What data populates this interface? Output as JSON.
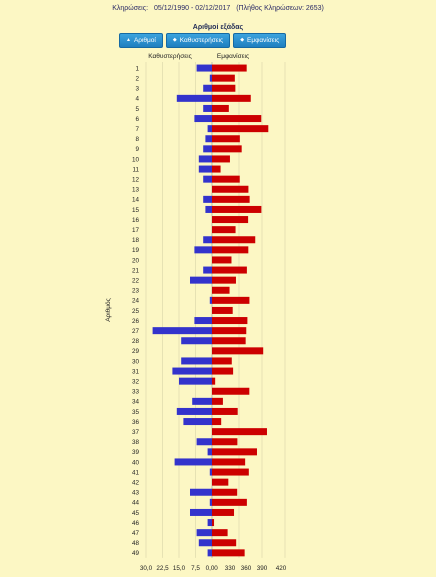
{
  "header": {
    "draws_label": "Κληρώσεις:",
    "date_range": "05/12/1990 - 02/12/2017",
    "draws_count": "(Πλήθος Κληρώσεων: 2653)"
  },
  "subtitle": "Αριθμοί εξάδας",
  "buttons": [
    {
      "label": "Αριθμοί",
      "icon": "▲"
    },
    {
      "label": "Καθυστερήσεις",
      "icon": "◆"
    },
    {
      "label": "Εμφανίσεις",
      "icon": "◆"
    }
  ],
  "chart_data": {
    "type": "bar",
    "orientation": "horizontal-diverging",
    "ylabel": "Αριθμός",
    "categories": [
      "1",
      "2",
      "3",
      "4",
      "5",
      "6",
      "7",
      "8",
      "9",
      "10",
      "11",
      "12",
      "13",
      "14",
      "15",
      "16",
      "17",
      "18",
      "19",
      "20",
      "21",
      "22",
      "23",
      "24",
      "25",
      "26",
      "27",
      "28",
      "29",
      "30",
      "31",
      "32",
      "33",
      "34",
      "35",
      "36",
      "37",
      "38",
      "39",
      "40",
      "41",
      "42",
      "43",
      "44",
      "45",
      "46",
      "47",
      "48",
      "49"
    ],
    "series": [
      {
        "name": "Καθυστερήσεις",
        "color": "#3333cc",
        "values": [
          7,
          1,
          4,
          16,
          4,
          8,
          2,
          3,
          4,
          6,
          6,
          4,
          0,
          4,
          3,
          0,
          0,
          4,
          8,
          0,
          4,
          10,
          0,
          1,
          0,
          8,
          27,
          14,
          0,
          14,
          18,
          15,
          0,
          9,
          16,
          13,
          0,
          7,
          2,
          17,
          1,
          0,
          10,
          1,
          10,
          2,
          7,
          6,
          2
        ]
      },
      {
        "name": "Εμφανίσεις",
        "color": "#cc0000",
        "values": [
          340,
          224,
          229,
          380,
          165,
          483,
          552,
          273,
          291,
          176,
          84,
          272,
          357,
          369,
          484,
          354,
          231,
          424,
          356,
          191,
          342,
          235,
          172,
          367,
          203,
          347,
          336,
          330,
          502,
          194,
          207,
          31,
          366,
          107,
          252,
          90,
          539,
          249,
          441,
          325,
          361,
          160,
          247,
          342,
          216,
          20,
          153,
          237,
          320
        ]
      }
    ],
    "x_axis_left": {
      "ticks": [
        "30,0",
        "22,5",
        "15,0",
        "7,5",
        "0,0"
      ],
      "min": 0,
      "max": 30
    },
    "x_axis_right": {
      "ticks": [
        "0",
        "330",
        "360",
        "390",
        "420"
      ]
    },
    "legend_left": "Καθυστερήσεις",
    "legend_right": "Εμφανίσεις",
    "grid": true
  }
}
